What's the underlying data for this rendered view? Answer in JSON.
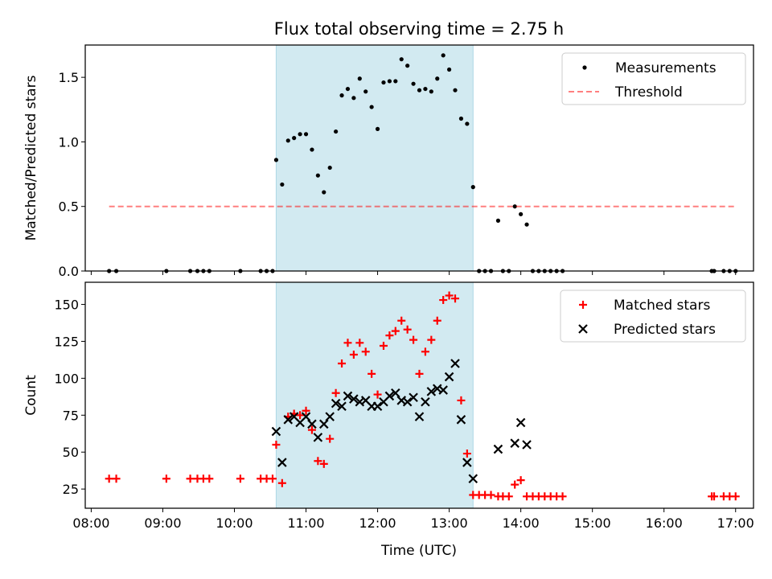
{
  "title": "Flux total observing time = 2.75 h",
  "xlabel": "Time (UTC)",
  "colors": {
    "shade": "#add8e6",
    "threshold": "#ff0000",
    "measurement": "#000000",
    "matched": "#ff0000",
    "predicted": "#000000"
  },
  "chart_data": [
    {
      "type": "scatter",
      "ylabel": "Matched/Predicted stars",
      "xlim": [
        "07:55",
        "17:15"
      ],
      "ylim": [
        0,
        1.75
      ],
      "yticks": [
        0.0,
        0.5,
        1.0,
        1.5
      ],
      "ytick_labels": [
        "0.0",
        "0.5",
        "1.0",
        "1.5"
      ],
      "shaded_interval": [
        "10:35",
        "13:20"
      ],
      "legend_position": "upper right",
      "series": [
        {
          "name": "Measurements",
          "marker": "dot",
          "points": [
            [
              "08:15",
              0
            ],
            [
              "08:21",
              0
            ],
            [
              "09:03",
              0
            ],
            [
              "09:23",
              0
            ],
            [
              "09:29",
              0
            ],
            [
              "09:34",
              0
            ],
            [
              "09:39",
              0
            ],
            [
              "10:05",
              0
            ],
            [
              "10:22",
              0
            ],
            [
              "10:27",
              0
            ],
            [
              "10:32",
              0
            ],
            [
              "10:35",
              0.86
            ],
            [
              "10:40",
              0.67
            ],
            [
              "10:45",
              1.01
            ],
            [
              "10:50",
              1.03
            ],
            [
              "10:55",
              1.06
            ],
            [
              "11:00",
              1.06
            ],
            [
              "11:05",
              0.94
            ],
            [
              "11:10",
              0.74
            ],
            [
              "11:15",
              0.61
            ],
            [
              "11:20",
              0.8
            ],
            [
              "11:25",
              1.08
            ],
            [
              "11:30",
              1.36
            ],
            [
              "11:35",
              1.41
            ],
            [
              "11:40",
              1.34
            ],
            [
              "11:45",
              1.49
            ],
            [
              "11:50",
              1.39
            ],
            [
              "11:55",
              1.27
            ],
            [
              "12:00",
              1.1
            ],
            [
              "12:05",
              1.46
            ],
            [
              "12:10",
              1.47
            ],
            [
              "12:15",
              1.47
            ],
            [
              "12:20",
              1.64
            ],
            [
              "12:25",
              1.59
            ],
            [
              "12:30",
              1.45
            ],
            [
              "12:35",
              1.4
            ],
            [
              "12:40",
              1.41
            ],
            [
              "12:45",
              1.39
            ],
            [
              "12:50",
              1.49
            ],
            [
              "12:55",
              1.67
            ],
            [
              "13:00",
              1.56
            ],
            [
              "13:05",
              1.4
            ],
            [
              "13:10",
              1.18
            ],
            [
              "13:15",
              1.14
            ],
            [
              "13:20",
              0.65
            ],
            [
              "13:25",
              0
            ],
            [
              "13:30",
              0
            ],
            [
              "13:35",
              0
            ],
            [
              "13:41",
              0.39
            ],
            [
              "13:45",
              0
            ],
            [
              "13:50",
              0
            ],
            [
              "13:55",
              0.5
            ],
            [
              "14:00",
              0.44
            ],
            [
              "14:05",
              0.36
            ],
            [
              "14:10",
              0
            ],
            [
              "14:15",
              0
            ],
            [
              "14:20",
              0
            ],
            [
              "14:25",
              0
            ],
            [
              "14:30",
              0
            ],
            [
              "14:35",
              0
            ],
            [
              "16:40",
              0
            ],
            [
              "16:42",
              0
            ],
            [
              "16:50",
              0
            ],
            [
              "16:55",
              0
            ],
            [
              "17:00",
              0
            ]
          ]
        },
        {
          "name": "Threshold",
          "marker": "dashed-line",
          "points": [
            [
              "08:15",
              0.5
            ],
            [
              "17:00",
              0.5
            ]
          ]
        }
      ]
    },
    {
      "type": "scatter",
      "ylabel": "Count",
      "xlim": [
        "07:55",
        "17:15"
      ],
      "ylim": [
        12,
        165
      ],
      "yticks": [
        25,
        50,
        75,
        100,
        125,
        150
      ],
      "ytick_labels": [
        "25",
        "50",
        "75",
        "100",
        "125",
        "150"
      ],
      "xticks": [
        "08:00",
        "09:00",
        "10:00",
        "11:00",
        "12:00",
        "13:00",
        "14:00",
        "15:00",
        "16:00",
        "17:00"
      ],
      "xtick_labels": [
        "08:00",
        "09:00",
        "10:00",
        "11:00",
        "12:00",
        "13:00",
        "14:00",
        "15:00",
        "16:00",
        "17:00"
      ],
      "shaded_interval": [
        "10:35",
        "13:20"
      ],
      "legend_position": "upper right",
      "series": [
        {
          "name": "Matched stars",
          "marker": "plus",
          "points": [
            [
              "08:15",
              32
            ],
            [
              "08:21",
              32
            ],
            [
              "09:03",
              32
            ],
            [
              "09:23",
              32
            ],
            [
              "09:29",
              32
            ],
            [
              "09:34",
              32
            ],
            [
              "09:39",
              32
            ],
            [
              "10:05",
              32
            ],
            [
              "10:22",
              32
            ],
            [
              "10:27",
              32
            ],
            [
              "10:32",
              32
            ],
            [
              "10:35",
              55
            ],
            [
              "10:40",
              29
            ],
            [
              "10:45",
              74
            ],
            [
              "10:50",
              76
            ],
            [
              "10:55",
              75
            ],
            [
              "11:00",
              78
            ],
            [
              "11:05",
              65
            ],
            [
              "11:10",
              44
            ],
            [
              "11:15",
              42
            ],
            [
              "11:20",
              59
            ],
            [
              "11:25",
              90
            ],
            [
              "11:30",
              110
            ],
            [
              "11:35",
              124
            ],
            [
              "11:40",
              116
            ],
            [
              "11:45",
              124
            ],
            [
              "11:50",
              118
            ],
            [
              "11:55",
              103
            ],
            [
              "12:00",
              89
            ],
            [
              "12:05",
              122
            ],
            [
              "12:10",
              129
            ],
            [
              "12:15",
              132
            ],
            [
              "12:20",
              139
            ],
            [
              "12:25",
              133
            ],
            [
              "12:30",
              126
            ],
            [
              "12:35",
              103
            ],
            [
              "12:40",
              118
            ],
            [
              "12:45",
              126
            ],
            [
              "12:50",
              139
            ],
            [
              "12:55",
              153
            ],
            [
              "13:00",
              156
            ],
            [
              "13:05",
              154
            ],
            [
              "13:10",
              85
            ],
            [
              "13:15",
              49
            ],
            [
              "13:20",
              21
            ],
            [
              "13:25",
              21
            ],
            [
              "13:30",
              21
            ],
            [
              "13:35",
              21
            ],
            [
              "13:41",
              20
            ],
            [
              "13:45",
              20
            ],
            [
              "13:50",
              20
            ],
            [
              "13:55",
              28
            ],
            [
              "14:00",
              31
            ],
            [
              "14:05",
              20
            ],
            [
              "14:10",
              20
            ],
            [
              "14:15",
              20
            ],
            [
              "14:20",
              20
            ],
            [
              "14:25",
              20
            ],
            [
              "14:30",
              20
            ],
            [
              "14:35",
              20
            ],
            [
              "16:40",
              20
            ],
            [
              "16:42",
              20
            ],
            [
              "16:50",
              20
            ],
            [
              "16:55",
              20
            ],
            [
              "17:00",
              20
            ]
          ]
        },
        {
          "name": "Predicted stars",
          "marker": "x",
          "points": [
            [
              "10:35",
              64
            ],
            [
              "10:40",
              43
            ],
            [
              "10:45",
              72
            ],
            [
              "10:50",
              74
            ],
            [
              "10:55",
              70
            ],
            [
              "11:00",
              74
            ],
            [
              "11:05",
              69
            ],
            [
              "11:10",
              60
            ],
            [
              "11:15",
              69
            ],
            [
              "11:20",
              74
            ],
            [
              "11:25",
              83
            ],
            [
              "11:30",
              81
            ],
            [
              "11:35",
              88
            ],
            [
              "11:40",
              86
            ],
            [
              "11:45",
              84
            ],
            [
              "11:50",
              85
            ],
            [
              "11:55",
              81
            ],
            [
              "12:00",
              81
            ],
            [
              "12:05",
              84
            ],
            [
              "12:10",
              88
            ],
            [
              "12:15",
              90
            ],
            [
              "12:20",
              85
            ],
            [
              "12:25",
              84
            ],
            [
              "12:30",
              87
            ],
            [
              "12:35",
              74
            ],
            [
              "12:40",
              84
            ],
            [
              "12:45",
              91
            ],
            [
              "12:50",
              93
            ],
            [
              "12:55",
              92
            ],
            [
              "13:00",
              101
            ],
            [
              "13:05",
              110
            ],
            [
              "13:10",
              72
            ],
            [
              "13:15",
              43
            ],
            [
              "13:20",
              32
            ],
            [
              "13:41",
              52
            ],
            [
              "13:55",
              56
            ],
            [
              "14:00",
              70
            ],
            [
              "14:05",
              55
            ]
          ]
        }
      ]
    }
  ]
}
